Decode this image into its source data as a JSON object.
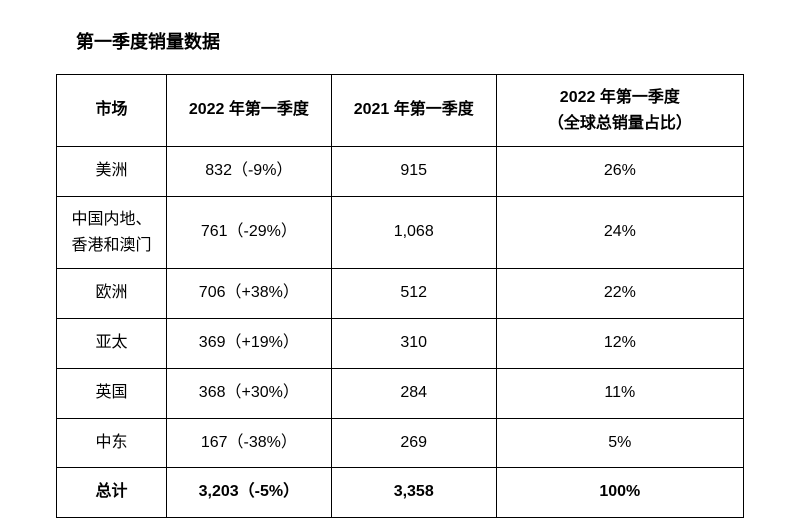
{
  "title": "第一季度销量数据",
  "table": {
    "type": "table",
    "background_color": "#ffffff",
    "border_color": "#000000",
    "text_color": "#000000",
    "header_fontsize": 16,
    "cell_fontsize": 16,
    "columns": [
      {
        "key": "market",
        "label": "市场"
      },
      {
        "key": "q1_2022",
        "label": "2022 年第一季度"
      },
      {
        "key": "q1_2021",
        "label": "2021 年第一季度"
      },
      {
        "key": "share",
        "label_line1": "2022 年第一季度",
        "label_line2": "（全球总销量占比）"
      }
    ],
    "rows": [
      {
        "market": "美洲",
        "q1_2022": "832（-9%）",
        "q1_2021": "915",
        "share": "26%"
      },
      {
        "market_line1": "中国内地、",
        "market_line2": "香港和澳门",
        "q1_2022": "761（-29%）",
        "q1_2021": "1,068",
        "share": "24%"
      },
      {
        "market": "欧洲",
        "q1_2022": "706（+38%）",
        "q1_2021": "512",
        "share": "22%"
      },
      {
        "market": "亚太",
        "q1_2022": "369（+19%）",
        "q1_2021": "310",
        "share": "12%"
      },
      {
        "market": "英国",
        "q1_2022": "368（+30%）",
        "q1_2021": "284",
        "share": "11%"
      },
      {
        "market": "中东",
        "q1_2022": "167（-38%）",
        "q1_2021": "269",
        "share": "5%"
      }
    ],
    "total": {
      "market": "总计",
      "q1_2022": "3,203（-5%）",
      "q1_2021": "3,358",
      "share": "100%"
    }
  }
}
